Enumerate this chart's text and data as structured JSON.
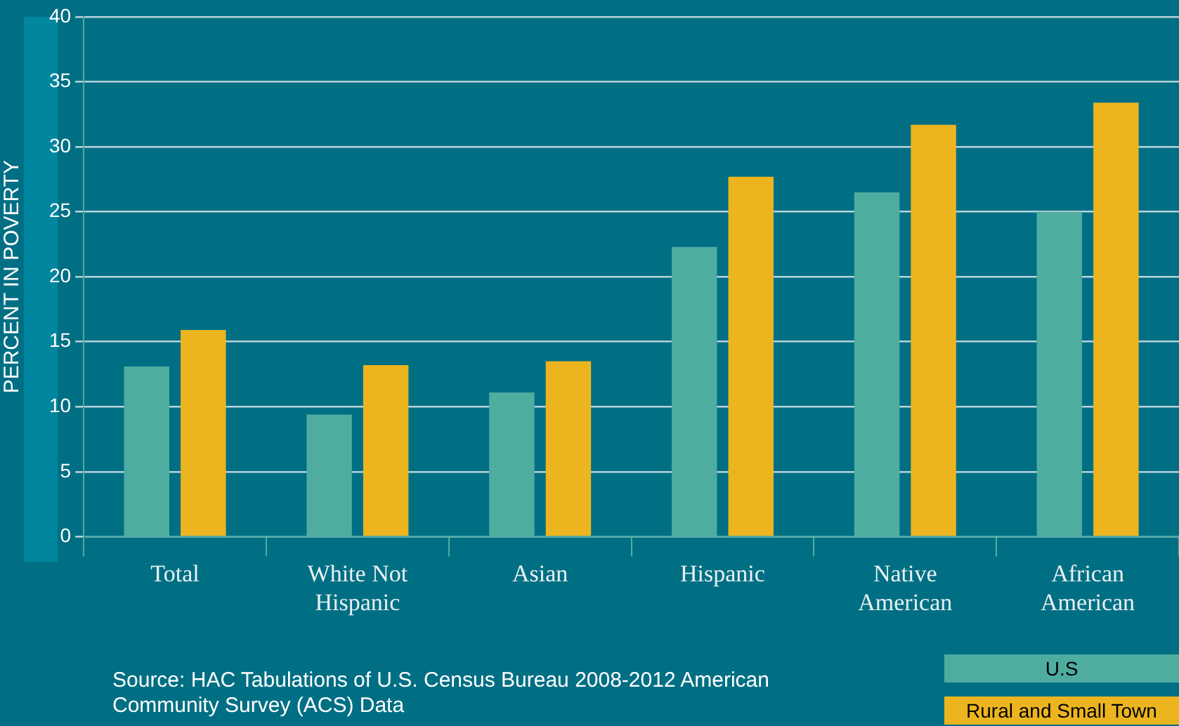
{
  "chart_data": {
    "type": "bar",
    "ylabel": "PERCENT IN POVERTY",
    "categories": [
      "Total",
      "White Not Hispanic",
      "Asian",
      "Hispanic",
      "Native American",
      "African American"
    ],
    "series": [
      {
        "name": "U.S",
        "color": "#4fada0",
        "values": [
          13.1,
          9.4,
          11.1,
          22.3,
          26.5,
          25.0
        ]
      },
      {
        "name": "Rural and Small Town",
        "color": "#ecb51f",
        "values": [
          15.9,
          13.2,
          13.5,
          27.7,
          31.7,
          33.4
        ]
      }
    ],
    "ylim": [
      0,
      40
    ],
    "yticks": [
      0,
      5,
      10,
      15,
      20,
      25,
      30,
      35,
      40
    ],
    "grid": "y",
    "legend": "bottom right",
    "annotations": [
      "Source: HAC Tabulations of U.S. Census Bureau 2008-2012 American Community Survey (ACS) Data"
    ]
  }
}
